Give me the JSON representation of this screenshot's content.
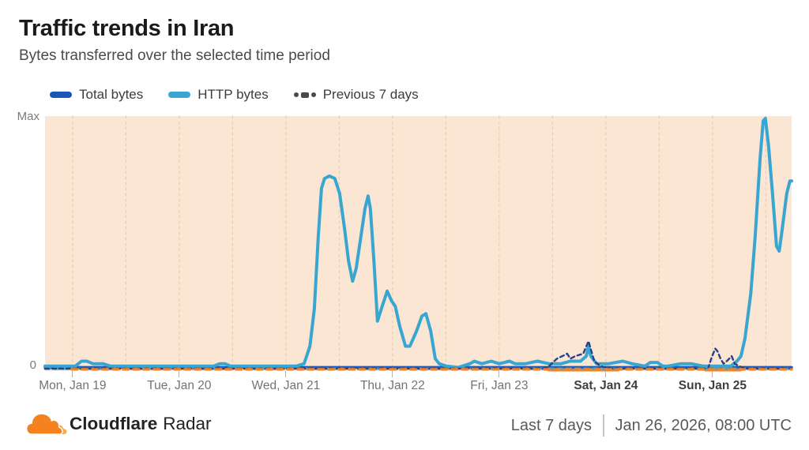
{
  "header": {
    "title": "Traffic trends in Iran",
    "subtitle": "Bytes transferred over the selected time period"
  },
  "legend": {
    "items": [
      {
        "label": "Total bytes",
        "color": "#1b58b5",
        "style": "solid"
      },
      {
        "label": "HTTP bytes",
        "color": "#3aa6d0",
        "style": "solid"
      },
      {
        "label": "Previous 7 days",
        "color": "#4a4a4a",
        "style": "dotted"
      }
    ]
  },
  "chart": {
    "y_max_label": "Max",
    "y_min_label": "0",
    "plot_bg_color": "#fbe5d3",
    "gridline_color": "#e9cdb2",
    "x_labels": [
      {
        "label": "Mon, Jan 19",
        "bold": false
      },
      {
        "label": "Tue, Jan 20",
        "bold": false
      },
      {
        "label": "Wed, Jan 21",
        "bold": false
      },
      {
        "label": "Thu, Jan 22",
        "bold": false
      },
      {
        "label": "Fri, Jan 23",
        "bold": false
      },
      {
        "label": "Sat, Jan 24",
        "bold": true
      },
      {
        "label": "Sun, Jan 25",
        "bold": true
      }
    ]
  },
  "chart_data": {
    "type": "line",
    "title": "Traffic trends in Iran",
    "subtitle": "Bytes transferred over the selected time period",
    "x_axis": {
      "unit": "hours within last 7 days",
      "range_hours": [
        0,
        168
      ],
      "day_tick_start_hour": 6.2,
      "day_tick_interval_hours": 24,
      "gridline_interval_hours": 12
    },
    "y_axis": {
      "min_label": "0",
      "max_label": "Max",
      "normalized_0_to_1": true
    },
    "legend_position": "top-left",
    "grid": "vertical-dashed",
    "series": [
      {
        "name": "Total bytes",
        "color": "#1b58b5",
        "dash": "solid",
        "points": [
          [
            0,
            0.005
          ],
          [
            168,
            0.005
          ]
        ]
      },
      {
        "name": "HTTP bytes",
        "color": "#39a5d1",
        "dash": "solid",
        "points": [
          [
            0,
            0.01
          ],
          [
            3.2,
            0.01
          ],
          [
            6.8,
            0.01
          ],
          [
            8.2,
            0.03
          ],
          [
            9.4,
            0.03
          ],
          [
            10.8,
            0.02
          ],
          [
            13,
            0.02
          ],
          [
            14.8,
            0.01
          ],
          [
            18.3,
            0.01
          ],
          [
            25.4,
            0.01
          ],
          [
            32.5,
            0.01
          ],
          [
            37.9,
            0.01
          ],
          [
            39.3,
            0.02
          ],
          [
            40.5,
            0.02
          ],
          [
            41.8,
            0.01
          ],
          [
            48.5,
            0.01
          ],
          [
            53.9,
            0.01
          ],
          [
            56.5,
            0.01
          ],
          [
            58.3,
            0.02
          ],
          [
            59.6,
            0.09
          ],
          [
            60.6,
            0.24
          ],
          [
            61.5,
            0.53
          ],
          [
            62.2,
            0.72
          ],
          [
            62.9,
            0.76
          ],
          [
            64,
            0.77
          ],
          [
            65.2,
            0.76
          ],
          [
            66.3,
            0.7
          ],
          [
            67.4,
            0.56
          ],
          [
            68.3,
            0.43
          ],
          [
            69.2,
            0.35
          ],
          [
            70,
            0.4
          ],
          [
            71.1,
            0.53
          ],
          [
            72,
            0.64
          ],
          [
            72.7,
            0.69
          ],
          [
            73.2,
            0.64
          ],
          [
            74,
            0.43
          ],
          [
            74.8,
            0.19
          ],
          [
            75.7,
            0.24
          ],
          [
            77,
            0.31
          ],
          [
            78,
            0.27
          ],
          [
            78.8,
            0.25
          ],
          [
            79.8,
            0.17
          ],
          [
            81.1,
            0.09
          ],
          [
            82.1,
            0.09
          ],
          [
            83.6,
            0.15
          ],
          [
            84.8,
            0.21
          ],
          [
            85.7,
            0.22
          ],
          [
            86.8,
            0.15
          ],
          [
            87.8,
            0.04
          ],
          [
            88.7,
            0.02
          ],
          [
            90.3,
            0.01
          ],
          [
            93,
            0.005
          ],
          [
            95.6,
            0.02
          ],
          [
            96.6,
            0.03
          ],
          [
            98.3,
            0.02
          ],
          [
            100.4,
            0.03
          ],
          [
            102.2,
            0.02
          ],
          [
            104.5,
            0.03
          ],
          [
            105.8,
            0.02
          ],
          [
            108.1,
            0.02
          ],
          [
            110.8,
            0.03
          ],
          [
            113.4,
            0.02
          ],
          [
            116.1,
            0.02
          ],
          [
            118.2,
            0.03
          ],
          [
            120.5,
            0.03
          ],
          [
            121.8,
            0.05
          ],
          [
            122.3,
            0.09
          ],
          [
            122.8,
            0.05
          ],
          [
            124.1,
            0.02
          ],
          [
            126.8,
            0.02
          ],
          [
            130,
            0.03
          ],
          [
            132.1,
            0.02
          ],
          [
            135,
            0.01
          ],
          [
            136.2,
            0.025
          ],
          [
            137.8,
            0.025
          ],
          [
            139,
            0.01
          ],
          [
            140.1,
            0.01
          ],
          [
            143.1,
            0.02
          ],
          [
            145.4,
            0.02
          ],
          [
            148.1,
            0.01
          ],
          [
            149.9,
            0.01
          ],
          [
            152.5,
            0.01
          ],
          [
            154.3,
            0.01
          ],
          [
            155.7,
            0.03
          ],
          [
            156.6,
            0.05
          ],
          [
            157.5,
            0.12
          ],
          [
            158.8,
            0.3
          ],
          [
            159.8,
            0.53
          ],
          [
            160.9,
            0.84
          ],
          [
            161.6,
            0.99
          ],
          [
            162.1,
            1
          ],
          [
            162.8,
            0.89
          ],
          [
            163.7,
            0.7
          ],
          [
            164.6,
            0.49
          ],
          [
            165.2,
            0.47
          ],
          [
            165.9,
            0.56
          ],
          [
            166.9,
            0.7
          ],
          [
            167.6,
            0.75
          ],
          [
            168,
            0.75
          ]
        ]
      },
      {
        "name": "Previous 7 days (Total bytes)",
        "color": "#27418c",
        "dash": "dashed",
        "points": [
          [
            0,
            0
          ],
          [
            112,
            0
          ],
          [
            113.4,
            0.01
          ],
          [
            115.2,
            0.04
          ],
          [
            116.4,
            0.05
          ],
          [
            117.5,
            0.06
          ],
          [
            118.2,
            0.04
          ],
          [
            119.3,
            0.05
          ],
          [
            121.1,
            0.06
          ],
          [
            122.3,
            0.11
          ],
          [
            123.6,
            0.03
          ],
          [
            125,
            0.01
          ],
          [
            127.6,
            0
          ],
          [
            141,
            0
          ],
          [
            149.2,
            0
          ],
          [
            149.9,
            0.04
          ],
          [
            150.8,
            0.08
          ],
          [
            151.3,
            0.07
          ],
          [
            152,
            0.04
          ],
          [
            152.7,
            0.02
          ],
          [
            153.4,
            0.03
          ],
          [
            154.5,
            0.05
          ],
          [
            155.2,
            0.02
          ],
          [
            156.1,
            0.01
          ],
          [
            157.9,
            0
          ],
          [
            168,
            0
          ]
        ]
      },
      {
        "name": "Previous 7 days (HTTP bytes)",
        "color": "#39a5d1",
        "dash": "dashed",
        "points": [
          [
            0,
            0
          ],
          [
            168,
            0
          ]
        ]
      }
    ],
    "annotations": {
      "outage_line": {
        "color": "#f6821f",
        "style": "dashed",
        "y_value": 0,
        "from_hour": 6,
        "to_hour": 168
      },
      "outage_bands_hours": [
        [
          113.4,
          128.9
        ],
        [
          148.6,
          156.4
        ]
      ],
      "outage_band_color": "#f3862b"
    }
  },
  "footer": {
    "brand_bold": "Cloudflare",
    "brand_regular": "Radar",
    "range_label": "Last 7 days",
    "timestamp": "Jan 26, 2026, 08:00 UTC"
  }
}
